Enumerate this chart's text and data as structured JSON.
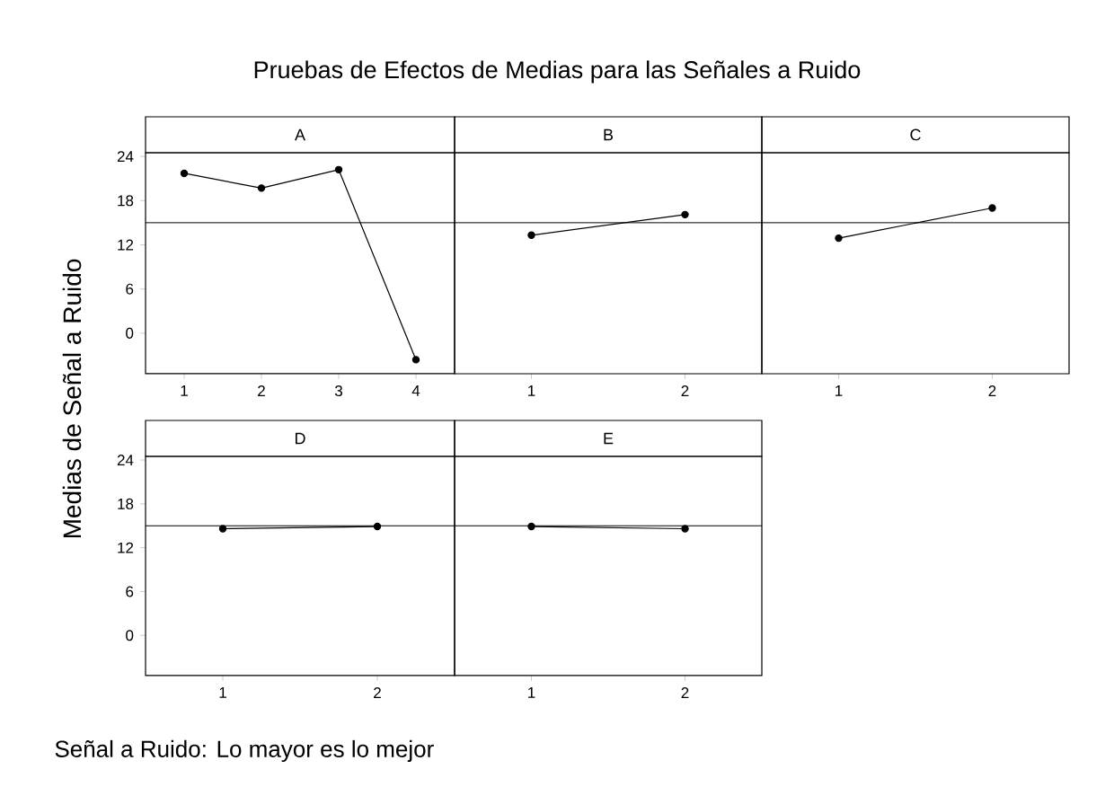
{
  "chart_data": [
    {
      "type": "line",
      "title": "A",
      "ylabel": "Medias de Señal a Ruido",
      "annotations": [
        "Pruebas de Efectos de Medias para las Señales a Ruido",
        "Señal a Ruido: Lo mayor es lo mejor"
      ],
      "categories": [
        "1",
        "2",
        "3",
        "4"
      ],
      "values": [
        21.7,
        19.7,
        22.2,
        -3.6
      ],
      "color": "#000000",
      "marker": "circle",
      "ylim": [
        -5.5,
        24.5
      ],
      "yticks": [
        0,
        6,
        12,
        18,
        24
      ],
      "ref_lines": [
        {
          "axis": "y",
          "value": 15
        }
      ]
    },
    {
      "type": "line",
      "title": "B",
      "categories": [
        "1",
        "2"
      ],
      "values": [
        13.3,
        16.1
      ],
      "color": "#000000",
      "marker": "circle",
      "ylim": [
        -5.5,
        24.5
      ],
      "yticks": [
        0,
        6,
        12,
        18,
        24
      ],
      "ref_lines": [
        {
          "axis": "y",
          "value": 15
        }
      ],
      "tick_labels": "x"
    },
    {
      "type": "line",
      "title": "C",
      "categories": [
        "1",
        "2"
      ],
      "values": [
        12.9,
        17.0
      ],
      "color": "#000000",
      "marker": "circle",
      "ylim": [
        -5.5,
        24.5
      ],
      "yticks": [
        0,
        6,
        12,
        18,
        24
      ],
      "ref_lines": [
        {
          "axis": "y",
          "value": 15
        }
      ],
      "tick_labels": "x"
    },
    {
      "type": "line",
      "title": "D",
      "categories": [
        "1",
        "2"
      ],
      "values": [
        14.6,
        14.9
      ],
      "color": "#000000",
      "marker": "circle",
      "ylim": [
        -5.5,
        24.5
      ],
      "yticks": [
        0,
        6,
        12,
        18,
        24
      ],
      "ref_lines": [
        {
          "axis": "y",
          "value": 15
        }
      ]
    },
    {
      "type": "line",
      "title": "E",
      "categories": [
        "1",
        "2"
      ],
      "values": [
        14.9,
        14.6
      ],
      "color": "#000000",
      "marker": "circle",
      "ylim": [
        -5.5,
        24.5
      ],
      "yticks": [
        0,
        6,
        12,
        18,
        24
      ],
      "ref_lines": [
        {
          "axis": "y",
          "value": 15
        }
      ],
      "tick_labels": "x"
    }
  ]
}
